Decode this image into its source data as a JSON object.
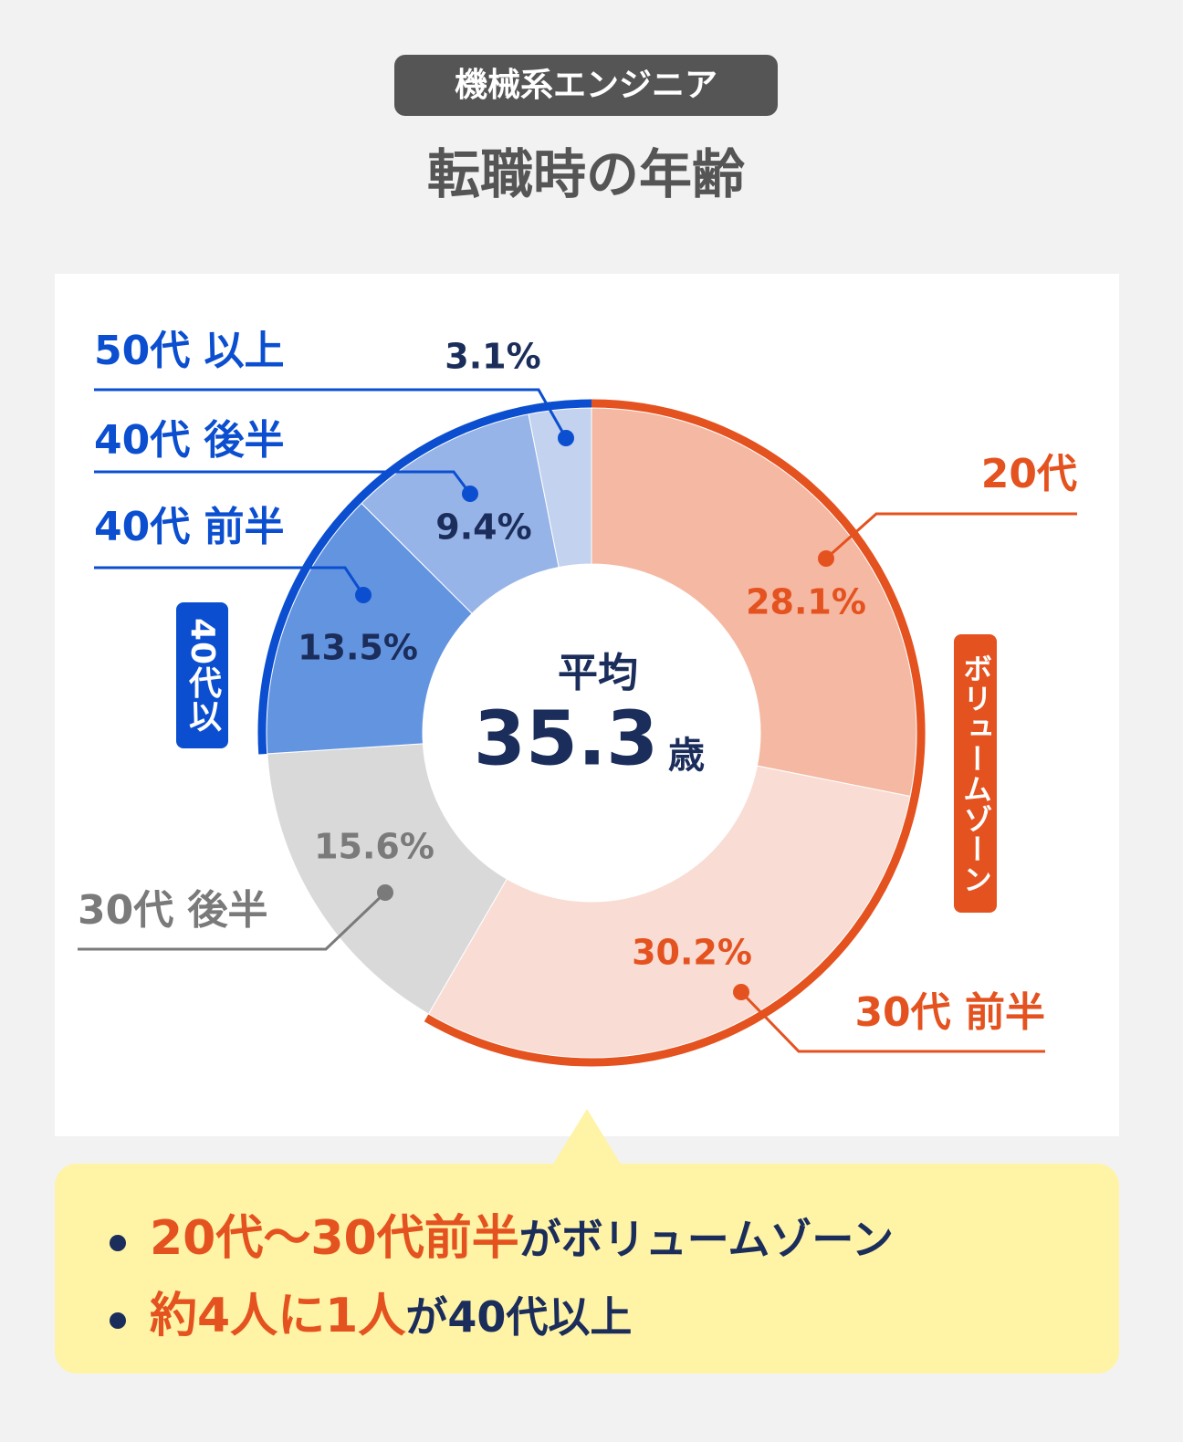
{
  "header": {
    "badge": "機械系エンジニア",
    "title": "転職時の年齢"
  },
  "chart_data": {
    "type": "donut",
    "categories": [
      "20代",
      "30代 前半",
      "30代 後半",
      "40代 前半",
      "40代 後半",
      "50代 以上"
    ],
    "values": [
      28.1,
      30.2,
      15.6,
      13.5,
      9.4,
      3.1
    ],
    "value_labels": [
      "28.1%",
      "30.2%",
      "15.6%",
      "13.5%",
      "9.4%",
      "3.1%"
    ],
    "colors": [
      "#f5b8a2",
      "#f9dcd3",
      "#d9d9d9",
      "#6394e0",
      "#97b4e8",
      "#c3d2ee"
    ],
    "label_colors": [
      "#e4521f",
      "#e4521f",
      "#7a7a7a",
      "#0b4fd0",
      "#0b4fd0",
      "#0b4fd0"
    ],
    "value_label_colors": [
      "#e4521f",
      "#e4521f",
      "#7a7a7a",
      "#1b2d5a",
      "#1b2d5a",
      "#1b2d5a"
    ],
    "center": {
      "label": "平均",
      "value": "35.3",
      "unit": "歳"
    },
    "group_labels": {
      "volume_zone": "ボリュームゾーン",
      "over_40": "40代以上"
    }
  },
  "notes": [
    {
      "highlight": "20代〜30代前半",
      "text": "がボリュームゾーン"
    },
    {
      "highlight": "約4人に1人",
      "text": "が40代以上"
    }
  ]
}
